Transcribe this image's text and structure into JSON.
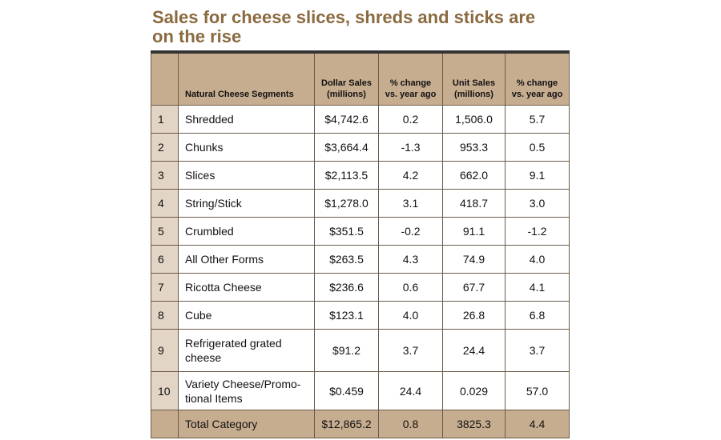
{
  "title": "Sales for cheese slices, shreds and sticks are on the rise",
  "table": {
    "headers": [
      "Natural Cheese Segments",
      "Dollar Sales (millions)",
      "% change vs. year ago",
      "Unit Sales (millions)",
      "% change vs. year ago"
    ],
    "rows": [
      [
        "1",
        "Shredded",
        "$4,742.6",
        "0.2",
        "1,506.0",
        "5.7"
      ],
      [
        "2",
        "Chunks",
        "$3,664.4",
        "-1.3",
        "953.3",
        "0.5"
      ],
      [
        "3",
        "Slices",
        "$2,113.5",
        "4.2",
        "662.0",
        "9.1"
      ],
      [
        "4",
        "String/Stick",
        "$1,278.0",
        "3.1",
        "418.7",
        "3.0"
      ],
      [
        "5",
        "Crumbled",
        "$351.5",
        "-0.2",
        "91.1",
        "-1.2"
      ],
      [
        "6",
        "All Other Forms",
        "$263.5",
        "4.3",
        "74.9",
        "4.0"
      ],
      [
        "7",
        "Ricotta Cheese",
        "$236.6",
        "0.6",
        "67.7",
        "4.1"
      ],
      [
        "8",
        "Cube",
        "$123.1",
        "4.0",
        "26.8",
        "6.8"
      ],
      [
        "9",
        "Refrigerated grated cheese",
        "$91.2",
        "3.7",
        "24.4",
        "3.7"
      ],
      [
        "10",
        "Variety Cheese/Promo-tional Items",
        "$0.459",
        "24.4",
        "0.029",
        "57.0"
      ]
    ],
    "total": [
      "Total Category",
      "$12,865.2",
      "0.8",
      "3825.3",
      "4.4"
    ]
  }
}
